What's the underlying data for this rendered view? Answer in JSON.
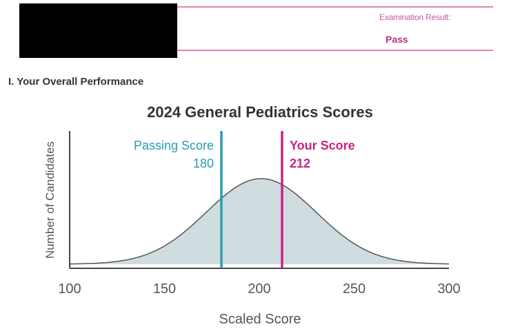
{
  "header": {
    "result_label": "Examination Result:",
    "result_value": "Pass",
    "accent_color": "#d63a8e"
  },
  "section": {
    "title": "I. Your Overall Performance"
  },
  "chart_data": {
    "type": "area",
    "title": "2024 General Pediatrics Scores",
    "xlabel": "Scaled Score",
    "ylabel": "Number of Candidates",
    "xlim": [
      100,
      300
    ],
    "xticks": [
      "100",
      "150",
      "200",
      "250",
      "300"
    ],
    "distribution": {
      "shape": "normal",
      "mean": 201,
      "sd": 29
    },
    "grid": false,
    "fill_color": "#cfdde0",
    "markers": [
      {
        "line1": "Passing Score",
        "line2": "180",
        "value": 180,
        "color": "#2a9bb0",
        "label_side": "left"
      },
      {
        "line1": "Your Score",
        "line2": "212",
        "value": 212,
        "color": "#cc2280",
        "label_side": "right"
      }
    ]
  }
}
